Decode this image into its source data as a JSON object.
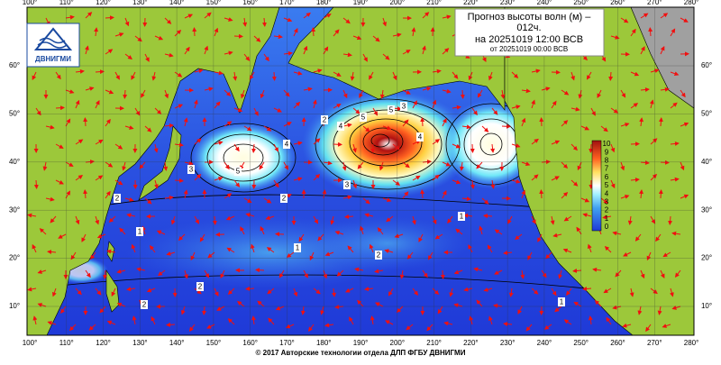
{
  "header": {
    "lines": [
      "Прогноз высоты волн (м) –",
      "012ч.",
      "на 20251019 12:00 ВСВ",
      "от 20251019 00:00 ВСВ"
    ]
  },
  "logo": {
    "text": "ДВНИГМИ"
  },
  "longitude_labels": [
    "100°",
    "110°",
    "120°",
    "130°",
    "140°",
    "150°",
    "160°",
    "170°",
    "180°",
    "190°",
    "200°",
    "210°",
    "220°",
    "230°",
    "240°",
    "250°",
    "260°",
    "270°",
    "280°"
  ],
  "latitude_labels": [
    "10°",
    "20°",
    "30°",
    "40°",
    "50°",
    "60°"
  ],
  "colorbar": {
    "labels": [
      "10",
      "9",
      "8",
      "7",
      "6",
      "5",
      "4",
      "3",
      "2",
      "1",
      "0"
    ]
  },
  "contour_labels": [
    "5",
    "4",
    "3",
    "2",
    "1",
    "5",
    "4",
    "3",
    "2",
    "5",
    "4",
    "3",
    "2",
    "2",
    "1",
    "1",
    "2",
    "1",
    "2"
  ],
  "footer": "© 2017 Авторские технологии отдела ДЛП ФГБУ ДВНИГМИ"
}
